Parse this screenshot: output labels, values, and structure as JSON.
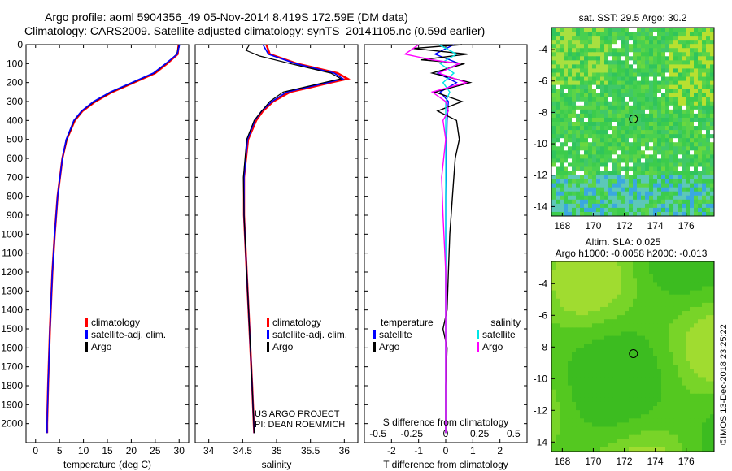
{
  "title_line1": "Argo profile: aoml 5904356_49 05-Nov-2014 8.419S 172.59E (DM data)",
  "title_line2": "Climatology: CARS2009. Satellite-adjusted climatology: synTS_20141105.nc (0.59d earlier)",
  "colors": {
    "climatology": "#ff0000",
    "satellite": "#0000ff",
    "argo": "#000000",
    "sat_salinity": "#00e5e5",
    "argo_salinity": "#ff00ff"
  },
  "chart_data": [
    {
      "type": "line",
      "name": "temperature-profile",
      "xlabel": "temperature (deg C)",
      "ylabel": "",
      "xlim": [
        -2,
        32
      ],
      "ylim": [
        2100,
        0
      ],
      "xticks": [
        "0",
        "5",
        "10",
        "15",
        "20",
        "25",
        "30"
      ],
      "yticks": [
        "0",
        "100",
        "200",
        "300",
        "400",
        "500",
        "600",
        "700",
        "800",
        "900",
        "1000",
        "1100",
        "1200",
        "1300",
        "1400",
        "1500",
        "1600",
        "1700",
        "1800",
        "1900",
        "2000"
      ],
      "legend": [
        "climatology",
        "satellite-adj. clim.",
        "Argo"
      ],
      "series": [
        {
          "name": "climatology",
          "depth": [
            0,
            50,
            100,
            150,
            200,
            250,
            300,
            350,
            400,
            500,
            600,
            800,
            1000,
            1200,
            1500,
            1800,
            2000,
            2050
          ],
          "values": [
            29.9,
            29.7,
            27.5,
            25,
            20.5,
            16,
            12.5,
            9.8,
            8.2,
            6.5,
            5.6,
            4.6,
            4.0,
            3.5,
            3.0,
            2.6,
            2.4,
            2.4
          ]
        },
        {
          "name": "satellite-adj. clim.",
          "depth": [
            0,
            50,
            100,
            150,
            200,
            250,
            300,
            350,
            400,
            500,
            600,
            800,
            1000,
            1200,
            1500,
            1800,
            2000,
            2050
          ],
          "values": [
            30.0,
            29.5,
            27.3,
            24.8,
            20.3,
            15.8,
            12.3,
            9.7,
            8.1,
            6.5,
            5.6,
            4.6,
            4.0,
            3.5,
            3.0,
            2.6,
            2.4,
            2.4
          ]
        },
        {
          "name": "Argo",
          "depth": [
            0,
            50,
            100,
            150,
            200,
            250,
            300,
            350,
            400,
            500,
            600,
            800,
            1000,
            1200,
            1500,
            1800,
            2000,
            2050
          ],
          "values": [
            30.1,
            29.6,
            27.2,
            24.6,
            20.1,
            15.6,
            12.1,
            9.6,
            8.0,
            6.4,
            5.6,
            4.6,
            4.0,
            3.5,
            3.0,
            2.6,
            2.4,
            2.4
          ]
        }
      ]
    },
    {
      "type": "line",
      "name": "salinity-profile",
      "xlabel": "salinity",
      "ylabel": "",
      "xlim": [
        33.8,
        36.2
      ],
      "ylim": [
        2100,
        0
      ],
      "xticks": [
        "34",
        "34.5",
        "35",
        "35.5",
        "36"
      ],
      "legend": [
        "climatology",
        "satellite-adj. clim.",
        "Argo"
      ],
      "annotation": [
        "US ARGO PROJECT",
        "PI: DEAN ROEMMICH"
      ],
      "series": [
        {
          "name": "climatology",
          "depth": [
            0,
            50,
            100,
            150,
            180,
            200,
            250,
            300,
            350,
            400,
            500,
            700,
            900,
            1200,
            1500,
            1800,
            2050
          ],
          "values": [
            34.85,
            34.9,
            35.3,
            35.9,
            36.05,
            35.8,
            35.2,
            34.95,
            34.8,
            34.7,
            34.58,
            34.52,
            34.52,
            34.56,
            34.6,
            34.64,
            34.67
          ]
        },
        {
          "name": "satellite-adj. clim.",
          "depth": [
            0,
            50,
            100,
            150,
            180,
            200,
            250,
            300,
            350,
            400,
            500,
            700,
            900,
            1200,
            1500,
            1800,
            2050
          ],
          "values": [
            34.8,
            34.88,
            35.28,
            35.85,
            35.98,
            35.75,
            35.15,
            34.93,
            34.78,
            34.68,
            34.57,
            34.52,
            34.52,
            34.56,
            34.6,
            34.64,
            34.67
          ]
        },
        {
          "name": "Argo",
          "depth": [
            0,
            30,
            60,
            100,
            150,
            180,
            200,
            250,
            300,
            350,
            400,
            500,
            700,
            900,
            1200,
            1500,
            1800,
            2050
          ],
          "values": [
            34.6,
            34.55,
            34.75,
            35.2,
            35.8,
            35.95,
            35.7,
            35.1,
            34.9,
            34.78,
            34.67,
            34.56,
            34.51,
            34.52,
            34.56,
            34.6,
            34.64,
            34.67
          ]
        }
      ]
    },
    {
      "type": "line",
      "name": "difference-profile",
      "xlabel": "T difference from climatology",
      "ylabel": "",
      "xlim": [
        -3,
        3
      ],
      "ylim": [
        2100,
        0
      ],
      "xticks": [
        "-2",
        "-1",
        "0",
        "1",
        "2"
      ],
      "s_xlabel": "S difference from climatology",
      "s_xticks": [
        "-0.5",
        "-0.25",
        "0",
        "0.25",
        "0.5"
      ],
      "legend_t": {
        "header": "temperature",
        "items": [
          "satellite",
          "Argo"
        ]
      },
      "legend_s": {
        "header": "salinity",
        "items": [
          "satellite",
          "Argo"
        ]
      },
      "series": [
        {
          "name": "T satellite",
          "depth": [
            0,
            50,
            100,
            150,
            200,
            250,
            300,
            400,
            600,
            800,
            1000,
            1500,
            2050
          ],
          "values": [
            0.3,
            -0.4,
            0.5,
            -0.3,
            0.4,
            -0.2,
            0.1,
            0.05,
            0.02,
            0.0,
            0.0,
            0.0,
            0.0
          ]
        },
        {
          "name": "T Argo",
          "depth": [
            0,
            20,
            50,
            80,
            100,
            150,
            200,
            250,
            300,
            350,
            400,
            500,
            600,
            700,
            800,
            900,
            1000,
            1200,
            1400,
            1500,
            1600,
            1800,
            2050
          ],
          "values": [
            0.6,
            -1.2,
            0.8,
            -0.9,
            0.7,
            -0.5,
            0.9,
            -0.4,
            0.6,
            -0.3,
            0.4,
            0.5,
            0.35,
            0.3,
            0.25,
            0.2,
            0.15,
            0.1,
            0.05,
            -0.1,
            0.05,
            0.0,
            0.0
          ]
        },
        {
          "name": "S satellite",
          "depth": [
            0,
            50,
            100,
            150,
            200,
            250,
            300,
            400,
            600,
            1000,
            1500,
            2050
          ],
          "values": [
            -0.05,
            0.08,
            -0.04,
            0.06,
            -0.02,
            0.03,
            0.0,
            0.0,
            0.0,
            0.0,
            0.0,
            0.0
          ]
        },
        {
          "name": "S Argo",
          "depth": [
            0,
            50,
            80,
            100,
            150,
            200,
            250,
            300,
            350,
            400,
            500,
            700,
            900,
            1200,
            1500,
            2050
          ],
          "values": [
            -0.2,
            -0.3,
            -0.1,
            0.1,
            -0.05,
            0.15,
            -0.1,
            0.0,
            0.02,
            -0.02,
            0.0,
            -0.03,
            -0.02,
            0.0,
            0.0,
            0.0
          ]
        }
      ]
    },
    {
      "type": "heatmap",
      "name": "sst-map",
      "title": "sat. SST: 29.5 Argo: 30.2",
      "xticks": [
        "168",
        "170",
        "172",
        "174",
        "176"
      ],
      "yticks": [
        "-4",
        "-6",
        "-8",
        "-10",
        "-12",
        "-14"
      ],
      "marker": {
        "lon": 172.59,
        "lat": -8.419
      }
    },
    {
      "type": "heatmap",
      "name": "sla-map",
      "title": "Altim. SLA: 0.025",
      "subtitle": "Argo h1000: -0.0058 h2000: -0.013",
      "xticks": [
        "168",
        "170",
        "172",
        "174",
        "176"
      ],
      "yticks": [
        "-4",
        "-6",
        "-8",
        "-10",
        "-12",
        "-14"
      ],
      "marker": {
        "lon": 172.59,
        "lat": -8.419
      }
    }
  ],
  "credit": "©IMOS 13-Dec-2018 23:25:22"
}
